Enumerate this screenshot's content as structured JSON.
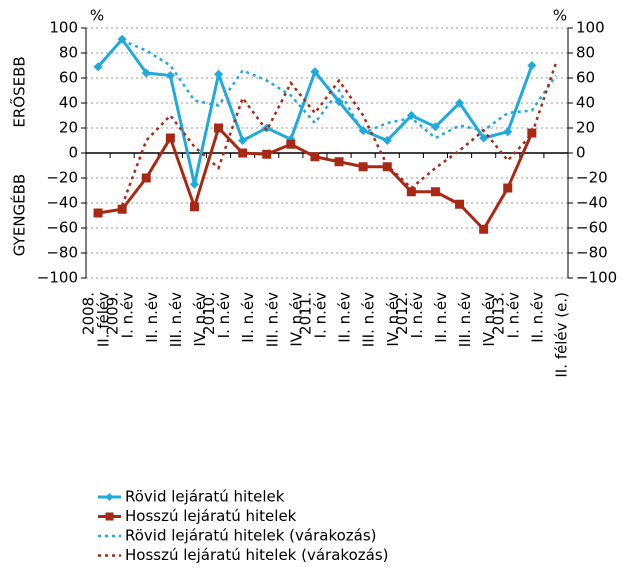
{
  "chart_data": {
    "type": "line",
    "unit_left": "%",
    "unit_right": "%",
    "upper_label": "ERŐSEBB",
    "lower_label": "GYENGÉBB",
    "categories": [
      "II. félév",
      "I. n.év",
      "II. n.év",
      "III. n.év",
      "IV. n.év",
      "I. n.év",
      "II. n.év",
      "III. n.év",
      "IV. n.év",
      "I. n.év",
      "II. n.év",
      "III. n.év",
      "IV. n.év",
      "I. n.év",
      "II. n.év",
      "III. n.év",
      "IV. n.év",
      "I. n.év",
      "II. n.év",
      "II. félév (e.)"
    ],
    "category_years": [
      "2008.",
      "2009.",
      null,
      null,
      null,
      "2010.",
      null,
      null,
      null,
      "2011.",
      null,
      null,
      null,
      "2012.",
      null,
      null,
      null,
      "2013.",
      null,
      null
    ],
    "series": [
      {
        "name": "Rövid lejáratú hitelek",
        "color": "#1eaadc",
        "style": "solid-marker",
        "values": [
          69,
          91,
          64,
          62,
          -25,
          63,
          10,
          20,
          11,
          65,
          41,
          18,
          10,
          30,
          21,
          40,
          12,
          17,
          70,
          null
        ]
      },
      {
        "name": "Hosszú lejáratú hitelek",
        "color": "#a82814",
        "style": "solid-marker",
        "values": [
          -48,
          -45,
          -20,
          12,
          -43,
          20,
          0,
          -1,
          7,
          -3,
          -7,
          -11,
          -11,
          -31,
          -31,
          -41,
          -61,
          -28,
          16,
          null
        ]
      },
      {
        "name": "Rövid lejáratú hitelek (várakozás)",
        "color": "#1eaadc",
        "style": "dotted",
        "values": [
          null,
          90,
          82,
          70,
          42,
          38,
          66,
          58,
          46,
          24,
          50,
          16,
          24,
          28,
          12,
          22,
          18,
          32,
          34,
          62
        ]
      },
      {
        "name": "Hosszú lejáratú hitelek (várakozás)",
        "color": "#a82814",
        "style": "dotted",
        "values": [
          null,
          -42,
          10,
          30,
          5,
          -12,
          44,
          18,
          56,
          32,
          58,
          30,
          -10,
          -28,
          -12,
          2,
          18,
          -6,
          15,
          72
        ]
      }
    ],
    "ylim": [
      -100,
      100
    ],
    "yticks": [
      {
        "value": -100,
        "label": "−100"
      },
      {
        "value": -80,
        "label": "−80"
      },
      {
        "value": -60,
        "label": "−60"
      },
      {
        "value": -40,
        "label": "−40"
      },
      {
        "value": -20,
        "label": "−20"
      },
      0,
      20,
      40,
      60,
      80,
      100
    ],
    "y2lim": [
      -100,
      100
    ],
    "y2ticks": [
      {
        "value": -100,
        "label": "−100"
      },
      {
        "value": -80,
        "label": "−80"
      },
      {
        "value": -60,
        "label": "−60"
      },
      {
        "value": -40,
        "label": "−40"
      },
      {
        "value": -20,
        "label": "−20"
      },
      0,
      20,
      40,
      60,
      80,
      100
    ],
    "grid": true
  }
}
